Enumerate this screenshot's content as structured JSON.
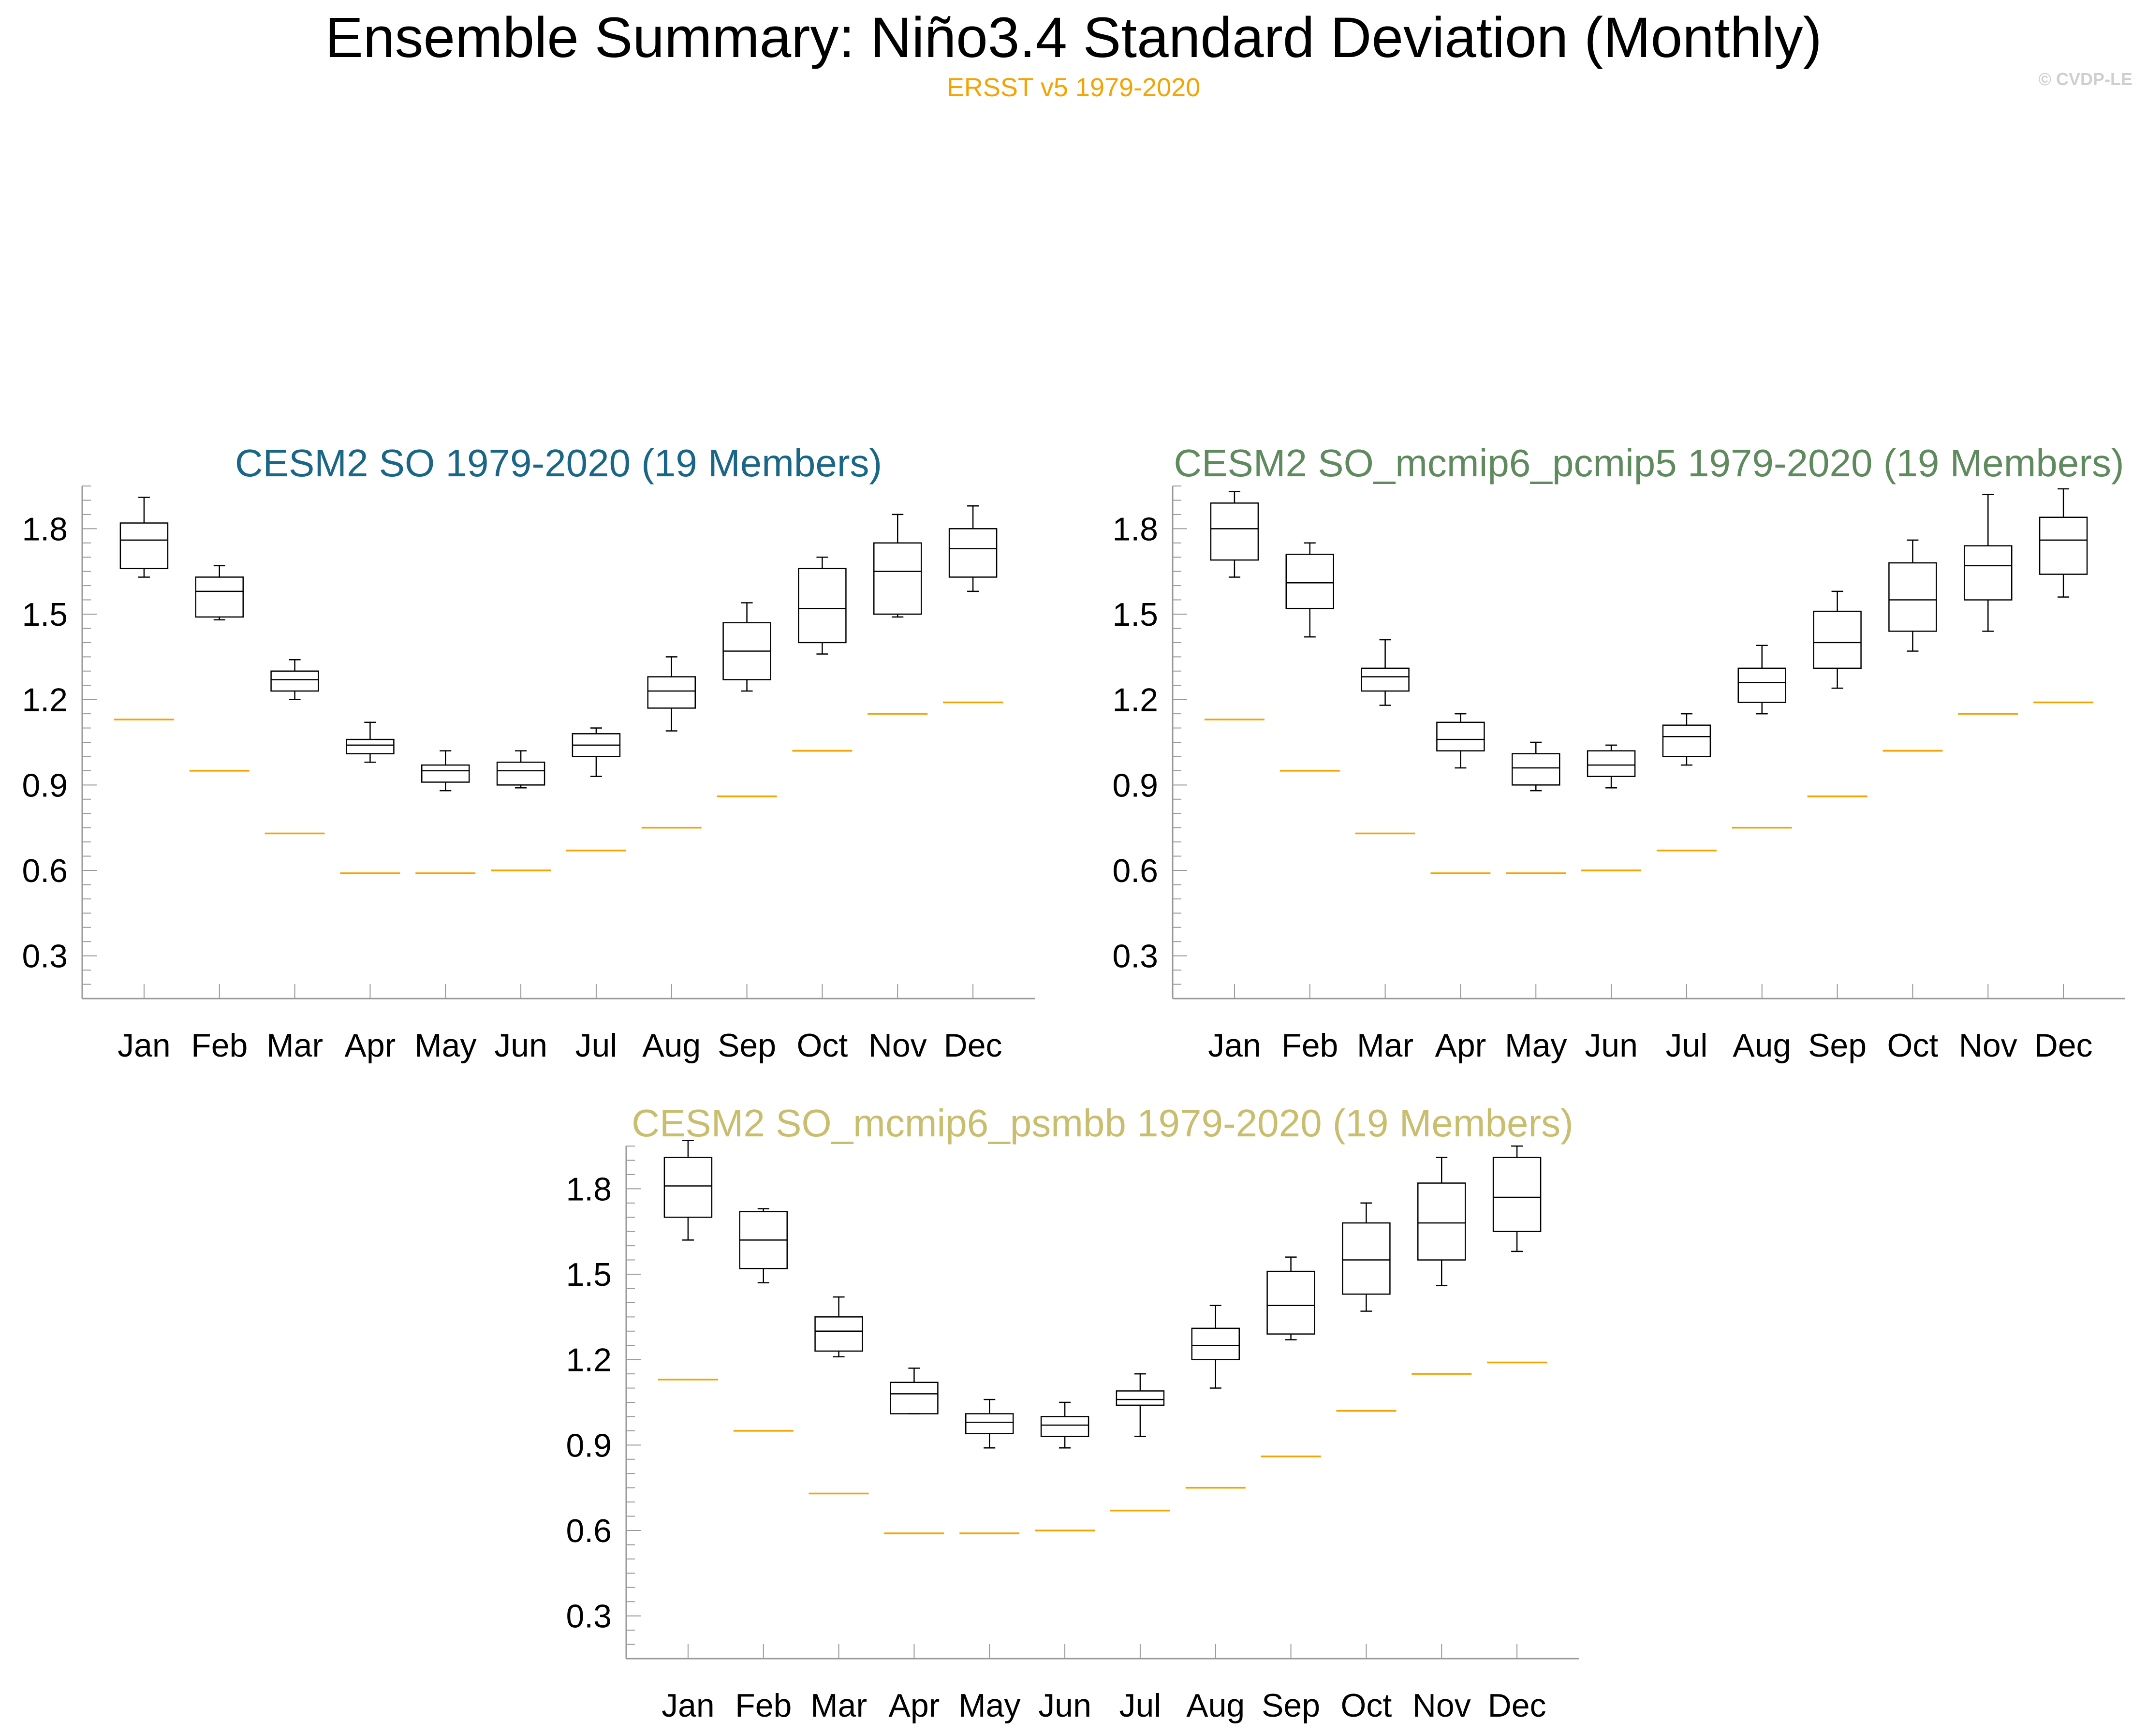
{
  "title": "Ensemble Summary: Niño3.4 Standard Deviation (Monthly)",
  "subtitle": "ERSST v5 1979-2020",
  "copyright": "© CVDP-LE",
  "colors": {
    "observation": "#f5a300",
    "subtitle": "#f5a300",
    "panel_titles": [
      "#1a6687",
      "#5e8a5e",
      "#c9bd6e"
    ],
    "boxes": "#000000",
    "axes": "#999999"
  },
  "chart_data": [
    {
      "type": "boxplot",
      "title": "CESM2 SO 1979-2020 (19 Members)",
      "categories": [
        "Jan",
        "Feb",
        "Mar",
        "Apr",
        "May",
        "Jun",
        "Jul",
        "Aug",
        "Sep",
        "Oct",
        "Nov",
        "Dec"
      ],
      "ylim": [
        0.15,
        1.95
      ],
      "yticks": [
        0.3,
        0.6,
        0.9,
        1.2,
        1.5,
        1.8
      ],
      "ytick_labels": [
        "0.3",
        "0.6",
        "0.9",
        "1.2",
        "1.5",
        "1.8"
      ],
      "boxes": [
        {
          "min": 1.63,
          "q1": 1.66,
          "median": 1.76,
          "q3": 1.82,
          "max": 1.91
        },
        {
          "min": 1.48,
          "q1": 1.49,
          "median": 1.58,
          "q3": 1.63,
          "max": 1.67
        },
        {
          "min": 1.2,
          "q1": 1.23,
          "median": 1.27,
          "q3": 1.3,
          "max": 1.34
        },
        {
          "min": 0.98,
          "q1": 1.01,
          "median": 1.04,
          "q3": 1.06,
          "max": 1.12
        },
        {
          "min": 0.88,
          "q1": 0.91,
          "median": 0.95,
          "q3": 0.97,
          "max": 1.02
        },
        {
          "min": 0.89,
          "q1": 0.9,
          "median": 0.95,
          "q3": 0.98,
          "max": 1.02
        },
        {
          "min": 0.93,
          "q1": 1.0,
          "median": 1.04,
          "q3": 1.08,
          "max": 1.1
        },
        {
          "min": 1.09,
          "q1": 1.17,
          "median": 1.23,
          "q3": 1.28,
          "max": 1.35
        },
        {
          "min": 1.23,
          "q1": 1.27,
          "median": 1.37,
          "q3": 1.47,
          "max": 1.54
        },
        {
          "min": 1.36,
          "q1": 1.4,
          "median": 1.52,
          "q3": 1.66,
          "max": 1.7
        },
        {
          "min": 1.49,
          "q1": 1.5,
          "median": 1.65,
          "q3": 1.75,
          "max": 1.85
        },
        {
          "min": 1.58,
          "q1": 1.63,
          "median": 1.73,
          "q3": 1.8,
          "max": 1.88
        }
      ],
      "observation": [
        1.13,
        0.95,
        0.73,
        0.59,
        0.59,
        0.6,
        0.67,
        0.75,
        0.86,
        1.02,
        1.15,
        1.19
      ]
    },
    {
      "type": "boxplot",
      "title": "CESM2 SO_mcmip6_pcmip5 1979-2020 (19 Members)",
      "categories": [
        "Jan",
        "Feb",
        "Mar",
        "Apr",
        "May",
        "Jun",
        "Jul",
        "Aug",
        "Sep",
        "Oct",
        "Nov",
        "Dec"
      ],
      "ylim": [
        0.15,
        1.95
      ],
      "yticks": [
        0.3,
        0.6,
        0.9,
        1.2,
        1.5,
        1.8
      ],
      "ytick_labels": [
        "0.3",
        "0.6",
        "0.9",
        "1.2",
        "1.5",
        "1.8"
      ],
      "boxes": [
        {
          "min": 1.63,
          "q1": 1.69,
          "median": 1.8,
          "q3": 1.89,
          "max": 1.93
        },
        {
          "min": 1.42,
          "q1": 1.52,
          "median": 1.61,
          "q3": 1.71,
          "max": 1.75
        },
        {
          "min": 1.18,
          "q1": 1.23,
          "median": 1.28,
          "q3": 1.31,
          "max": 1.41
        },
        {
          "min": 0.96,
          "q1": 1.02,
          "median": 1.06,
          "q3": 1.12,
          "max": 1.15
        },
        {
          "min": 0.88,
          "q1": 0.9,
          "median": 0.96,
          "q3": 1.01,
          "max": 1.05
        },
        {
          "min": 0.89,
          "q1": 0.93,
          "median": 0.97,
          "q3": 1.02,
          "max": 1.04
        },
        {
          "min": 0.97,
          "q1": 1.0,
          "median": 1.07,
          "q3": 1.11,
          "max": 1.15
        },
        {
          "min": 1.15,
          "q1": 1.19,
          "median": 1.26,
          "q3": 1.31,
          "max": 1.39
        },
        {
          "min": 1.24,
          "q1": 1.31,
          "median": 1.4,
          "q3": 1.51,
          "max": 1.58
        },
        {
          "min": 1.37,
          "q1": 1.44,
          "median": 1.55,
          "q3": 1.68,
          "max": 1.76
        },
        {
          "min": 1.44,
          "q1": 1.55,
          "median": 1.67,
          "q3": 1.74,
          "max": 1.92
        },
        {
          "min": 1.56,
          "q1": 1.64,
          "median": 1.76,
          "q3": 1.84,
          "max": 1.94
        }
      ],
      "observation": [
        1.13,
        0.95,
        0.73,
        0.59,
        0.59,
        0.6,
        0.67,
        0.75,
        0.86,
        1.02,
        1.15,
        1.19
      ]
    },
    {
      "type": "boxplot",
      "title": "CESM2 SO_mcmip6_psmbb 1979-2020 (19 Members)",
      "categories": [
        "Jan",
        "Feb",
        "Mar",
        "Apr",
        "May",
        "Jun",
        "Jul",
        "Aug",
        "Sep",
        "Oct",
        "Nov",
        "Dec"
      ],
      "ylim": [
        0.15,
        1.95
      ],
      "yticks": [
        0.3,
        0.6,
        0.9,
        1.2,
        1.5,
        1.8
      ],
      "ytick_labels": [
        "0.3",
        "0.6",
        "0.9",
        "1.2",
        "1.5",
        "1.8"
      ],
      "boxes": [
        {
          "min": 1.62,
          "q1": 1.7,
          "median": 1.81,
          "q3": 1.91,
          "max": 1.97
        },
        {
          "min": 1.47,
          "q1": 1.52,
          "median": 1.62,
          "q3": 1.72,
          "max": 1.73
        },
        {
          "min": 1.21,
          "q1": 1.23,
          "median": 1.3,
          "q3": 1.35,
          "max": 1.42
        },
        {
          "min": 1.01,
          "q1": 1.01,
          "median": 1.08,
          "q3": 1.12,
          "max": 1.17
        },
        {
          "min": 0.89,
          "q1": 0.94,
          "median": 0.98,
          "q3": 1.01,
          "max": 1.06
        },
        {
          "min": 0.89,
          "q1": 0.93,
          "median": 0.97,
          "q3": 1.0,
          "max": 1.05
        },
        {
          "min": 0.93,
          "q1": 1.04,
          "median": 1.06,
          "q3": 1.09,
          "max": 1.15
        },
        {
          "min": 1.1,
          "q1": 1.2,
          "median": 1.25,
          "q3": 1.31,
          "max": 1.39
        },
        {
          "min": 1.27,
          "q1": 1.29,
          "median": 1.39,
          "q3": 1.51,
          "max": 1.56
        },
        {
          "min": 1.37,
          "q1": 1.43,
          "median": 1.55,
          "q3": 1.68,
          "max": 1.75
        },
        {
          "min": 1.46,
          "q1": 1.55,
          "median": 1.68,
          "q3": 1.82,
          "max": 1.91
        },
        {
          "min": 1.58,
          "q1": 1.65,
          "median": 1.77,
          "q3": 1.91,
          "max": 1.95
        }
      ],
      "observation": [
        1.13,
        0.95,
        0.73,
        0.59,
        0.59,
        0.6,
        0.67,
        0.75,
        0.86,
        1.02,
        1.15,
        1.19
      ]
    }
  ]
}
